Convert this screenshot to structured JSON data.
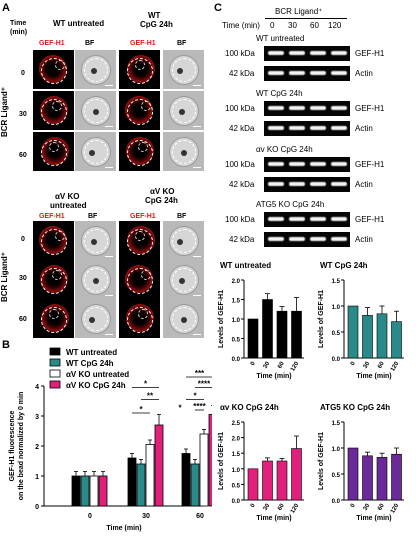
{
  "panel_labels": {
    "a": "A",
    "b": "B",
    "c": "C"
  },
  "panelA": {
    "time_header": [
      "Time",
      "(min)"
    ],
    "row_axis_label": "BCR Ligand⁺",
    "times": [
      "0",
      "30",
      "60"
    ],
    "top": {
      "col1": "WT untreated",
      "col2": [
        "WT",
        "CpG 24h"
      ]
    },
    "bottom": {
      "col1": [
        "αV KO",
        "untreated"
      ],
      "col2": [
        "αV KO",
        "CpG 24h"
      ]
    },
    "channels": {
      "gef": "GEF-H1",
      "bf": "BF"
    }
  },
  "panelB": {
    "legend": [
      "WT untreated",
      "WT CpG 24h",
      "αV KO untreated",
      "αV KO CpG 24h"
    ],
    "sig": [
      "*",
      "**",
      "*",
      "*",
      "***",
      "****",
      "*",
      "****"
    ]
  },
  "panelC": {
    "ligand_header": "BCR Ligand⁺",
    "time_header": "Time (min)",
    "times": [
      "0",
      "30",
      "60",
      "120"
    ],
    "blots": [
      {
        "title": "WT untreated",
        "kda1": "100 kDa",
        "kda2": "42 kDa",
        "label1": "GEF-H1",
        "label2": "Actin"
      },
      {
        "title": "WT CpG 24h",
        "kda1": "100 kDa",
        "kda2": "42 kDa",
        "label1": "GEF-H1",
        "label2": "Actin"
      },
      {
        "title": "αv KO CpG 24h",
        "kda1": "100 kDa",
        "kda2": "42 kDa",
        "label1": "GEF-H1",
        "label2": "Actin"
      },
      {
        "title": "ATG5 KO CpG 24h",
        "kda1": "100 kDa",
        "kda2": "42 kDa",
        "label1": "GEF-H1",
        "label2": "Actin"
      }
    ]
  },
  "chart_data": [
    {
      "type": "bar",
      "title": "",
      "ylabel": "GEF-H1 fluorescence on the bead normalized by 0 min",
      "xlabel": "Time (min)",
      "categories": [
        "0",
        "30",
        "60"
      ],
      "ylim": [
        0,
        4
      ],
      "yticks": [
        "0",
        "1",
        "2",
        "3",
        "4"
      ],
      "series": [
        {
          "name": "WT untreated",
          "color": "#000000",
          "values": [
            1.0,
            1.6,
            1.75
          ],
          "errors": [
            0.15,
            0.15,
            0.15
          ]
        },
        {
          "name": "WT CpG 24h",
          "color": "#2a8a8a",
          "values": [
            1.0,
            1.4,
            1.4
          ],
          "errors": [
            0.15,
            0.15,
            0.15
          ]
        },
        {
          "name": "αV KO untreated",
          "color": "#ffffff",
          "values": [
            1.0,
            2.05,
            2.4
          ],
          "errors": [
            0.15,
            0.15,
            0.15
          ]
        },
        {
          "name": "αV KO CpG 24h",
          "color": "#e0207a",
          "values": [
            1.0,
            2.7,
            3.05
          ],
          "errors": [
            0.15,
            0.35,
            0.3
          ]
        }
      ]
    },
    {
      "type": "bar",
      "title": "WT untreated",
      "xlabel": "Time (min)",
      "ylabel": "Levels of GEF-H1",
      "categories": [
        "0",
        "30",
        "60",
        "120"
      ],
      "values": [
        1.0,
        1.5,
        1.2,
        1.2
      ],
      "errors": [
        0,
        0.15,
        0.12,
        0.35
      ],
      "ylim": [
        0,
        2
      ],
      "yticks": [
        "0.0",
        "0.5",
        "1.0",
        "1.5",
        "2.0"
      ],
      "color": "#000000"
    },
    {
      "type": "bar",
      "title": "WT CpG 24h",
      "xlabel": "Time (min)",
      "ylabel": "Levels of GEF-H1",
      "categories": [
        "0",
        "30",
        "60",
        "120"
      ],
      "values": [
        1.0,
        0.82,
        0.85,
        0.7
      ],
      "errors": [
        0,
        0.15,
        0.15,
        0.2
      ],
      "ylim": [
        0,
        1.5
      ],
      "yticks": [
        "0.0",
        "0.5",
        "1.0",
        "1.5"
      ],
      "color": "#2a8a8a"
    },
    {
      "type": "bar",
      "title": "αv KO CpG 24h",
      "xlabel": "Time (min)",
      "ylabel": "Levels of GEF-H1",
      "categories": [
        "0",
        "30",
        "60",
        "120"
      ],
      "values": [
        1.0,
        1.25,
        1.25,
        1.65
      ],
      "errors": [
        0,
        0.1,
        0.08,
        0.4
      ],
      "ylim": [
        0,
        2.5
      ],
      "yticks": [
        "0.0",
        "0.5",
        "1.0",
        "1.5",
        "2.0",
        "2.5"
      ],
      "color": "#e0207a"
    },
    {
      "type": "bar",
      "title": "ATG5 KO CpG 24h",
      "xlabel": "Time (min)",
      "ylabel": "Levels of GEF-H1",
      "categories": [
        "0",
        "30",
        "60",
        "120"
      ],
      "values": [
        1.0,
        0.85,
        0.82,
        0.88
      ],
      "errors": [
        0,
        0.07,
        0.08,
        0.12
      ],
      "ylim": [
        0,
        1.5
      ],
      "yticks": [
        "0.0",
        "0.5",
        "1.0",
        "1.5"
      ],
      "color": "#6a2a9a"
    }
  ]
}
